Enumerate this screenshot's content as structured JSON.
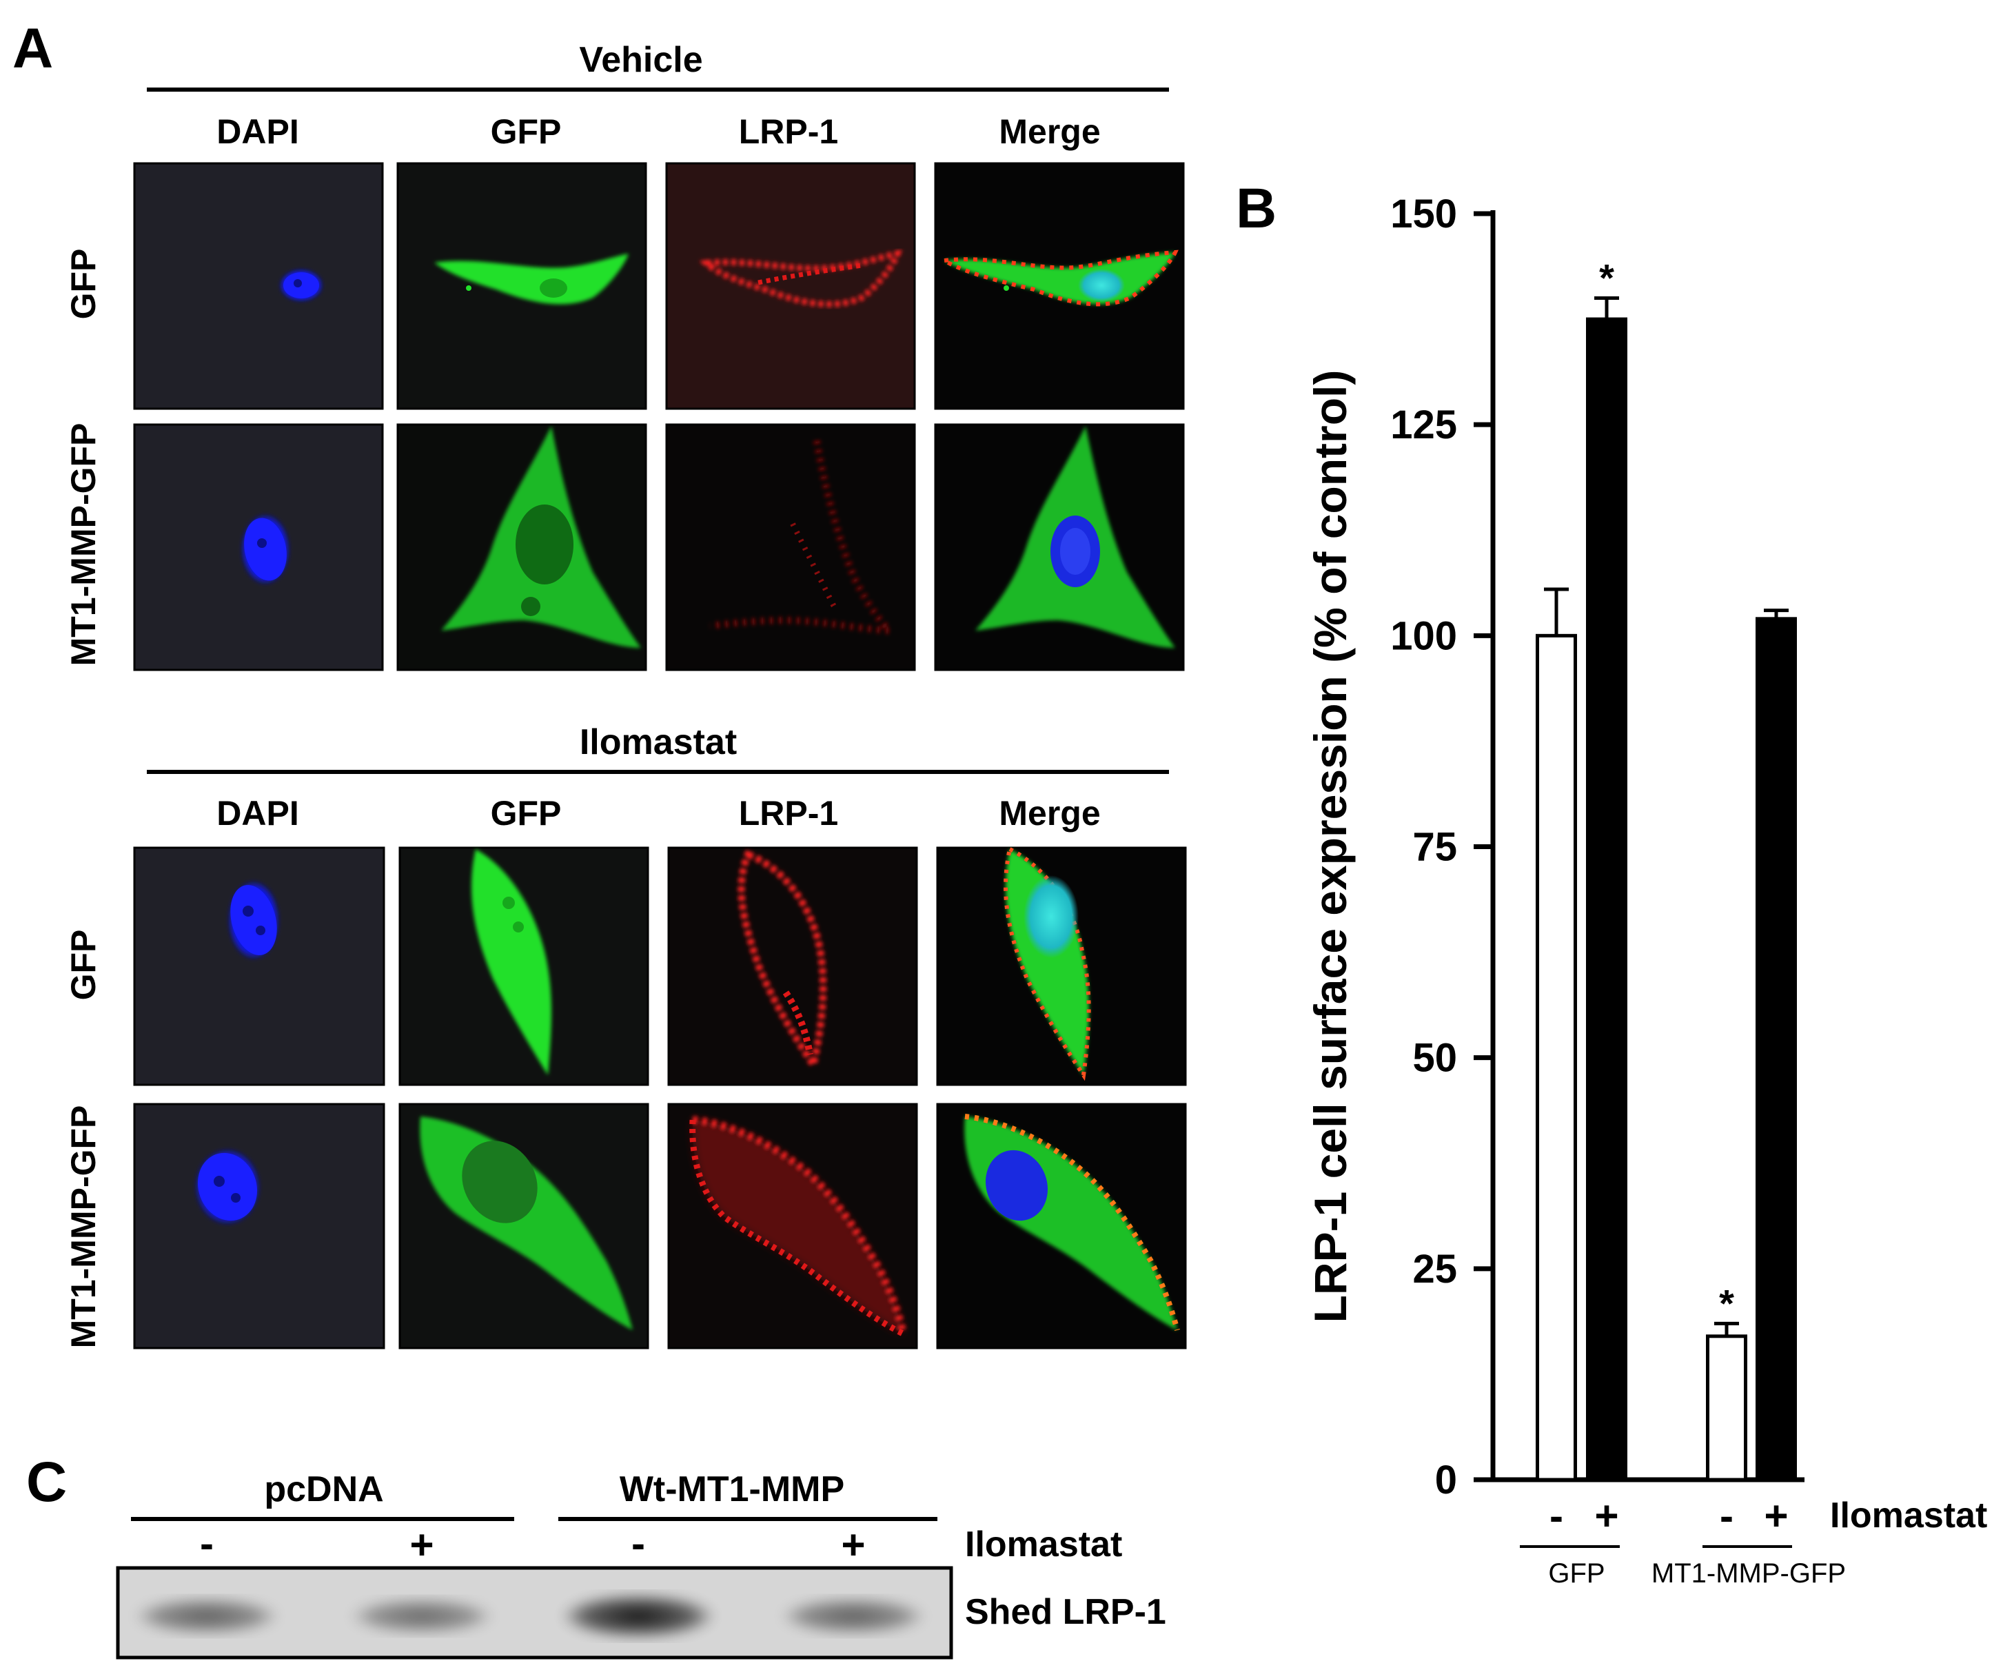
{
  "figure": {
    "panel_a": {
      "letter": "A",
      "vehicle": {
        "title": "Vehicle",
        "columns": [
          "DAPI",
          "GFP",
          "LRP-1",
          "Merge"
        ],
        "rows": [
          "GFP",
          "MT1-MMP-GFP"
        ]
      },
      "ilomastat": {
        "title": "Ilomastat",
        "columns": [
          "DAPI",
          "GFP",
          "LRP-1",
          "Merge"
        ],
        "rows": [
          "GFP",
          "MT1-MMP-GFP"
        ]
      }
    },
    "panel_b": {
      "letter": "B"
    },
    "panel_c": {
      "letter": "C",
      "groups": [
        "pcDNA",
        "Wt-MT1-MMP"
      ],
      "treatment_signs": [
        "-",
        "+",
        "-",
        "+"
      ],
      "treatment_label": "Ilomastat",
      "band_label": "Shed LRP-1",
      "band_intensity": [
        0.55,
        0.5,
        0.9,
        0.55
      ]
    }
  },
  "chart_data": {
    "type": "bar",
    "ylabel": "LRP-1 cell surface expression (% of control)",
    "ylim": [
      0,
      150
    ],
    "yticks": [
      0,
      25,
      50,
      75,
      100,
      125,
      150
    ],
    "groups": [
      "GFP",
      "MT1-MMP-GFP"
    ],
    "treatment_label": "Ilomastat",
    "bars": [
      {
        "group": "GFP",
        "sign": "-",
        "value": 100,
        "error": 5.5,
        "fill": "#ffffff",
        "significant": false
      },
      {
        "group": "GFP",
        "sign": "+",
        "value": 137.5,
        "error": 2.5,
        "fill": "#000000",
        "significant": true
      },
      {
        "group": "MT1-MMP-GFP",
        "sign": "-",
        "value": 17,
        "error": 1.5,
        "fill": "#ffffff",
        "significant": true
      },
      {
        "group": "MT1-MMP-GFP",
        "sign": "+",
        "value": 102,
        "error": 1,
        "fill": "#000000",
        "significant": false
      }
    ],
    "significance_marker": "*"
  }
}
